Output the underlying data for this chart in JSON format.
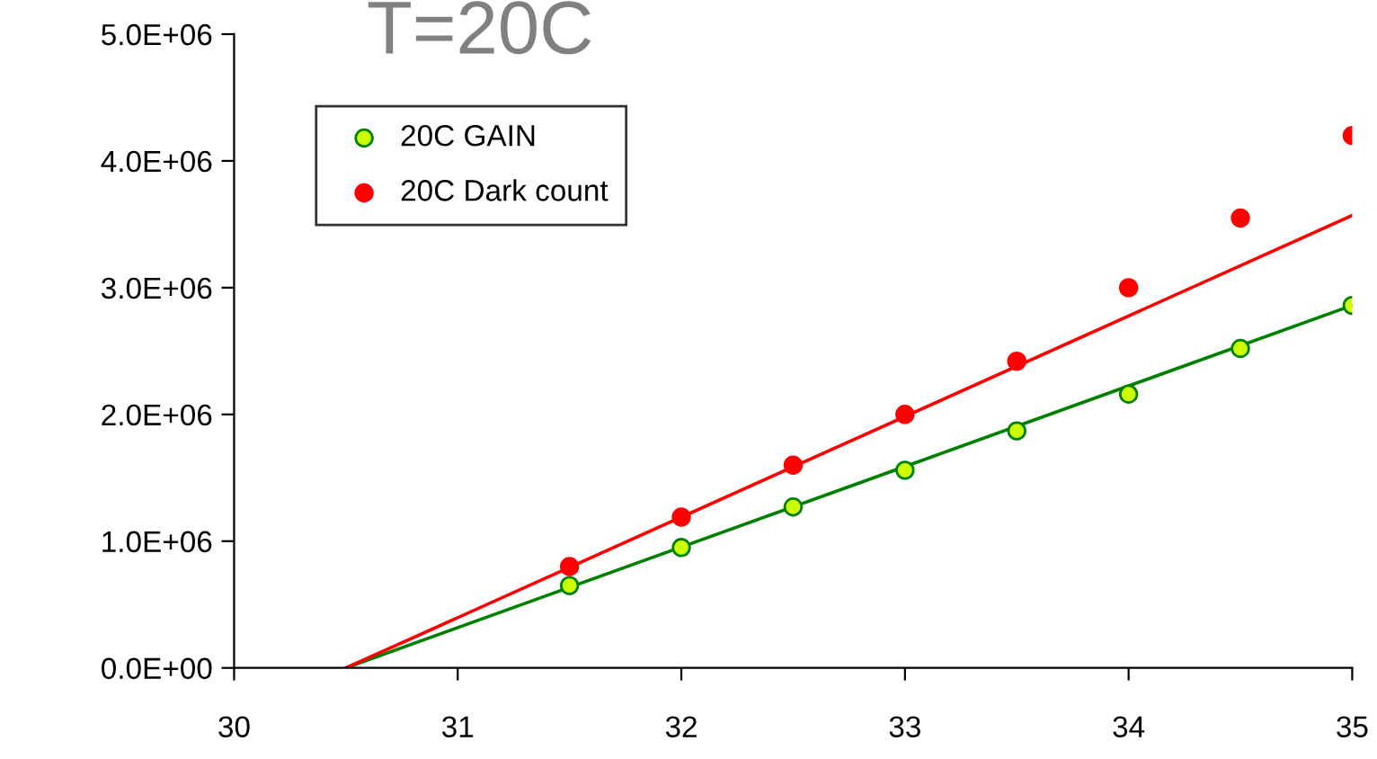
{
  "chart_data": {
    "type": "scatter",
    "title": "T=20C",
    "xlim": [
      30,
      35
    ],
    "ylim": [
      0,
      5000000
    ],
    "xticks": [
      30,
      31,
      32,
      33,
      34,
      35
    ],
    "yticks": [
      {
        "value": 0,
        "label": "0.0E+00"
      },
      {
        "value": 1000000,
        "label": "1.0E+06"
      },
      {
        "value": 2000000,
        "label": "2.0E+06"
      },
      {
        "value": 3000000,
        "label": "3.0E+06"
      },
      {
        "value": 4000000,
        "label": "4.0E+06"
      },
      {
        "value": 5000000,
        "label": "5.0E+06"
      }
    ],
    "grid": false,
    "legend": "top left",
    "marker": "circle",
    "series": [
      {
        "type": "line",
        "color": "#008000",
        "x": [
          30.5,
          35
        ],
        "values": [
          0,
          2860000
        ],
        "marker": "none"
      },
      {
        "type": "line",
        "color": "#ff0000",
        "x": [
          30.5,
          35
        ],
        "values": [
          0,
          3570000
        ],
        "marker": "none"
      },
      {
        "name": "20C GAIN",
        "color": "#ccff00",
        "x": [
          31.5,
          32,
          32.5,
          33,
          33.5,
          34,
          34.5,
          35
        ],
        "values": [
          650000,
          950000,
          1270000,
          1560000,
          1870000,
          2160000,
          2520000,
          2860000
        ]
      },
      {
        "name": "20C Dark count",
        "color": "#ff0000",
        "x": [
          31.5,
          32,
          32.5,
          33,
          33.5,
          34,
          34.5,
          35
        ],
        "values": [
          800000,
          1190000,
          1600000,
          2000000,
          2420000,
          3000000,
          3550000,
          4200000
        ]
      }
    ]
  }
}
